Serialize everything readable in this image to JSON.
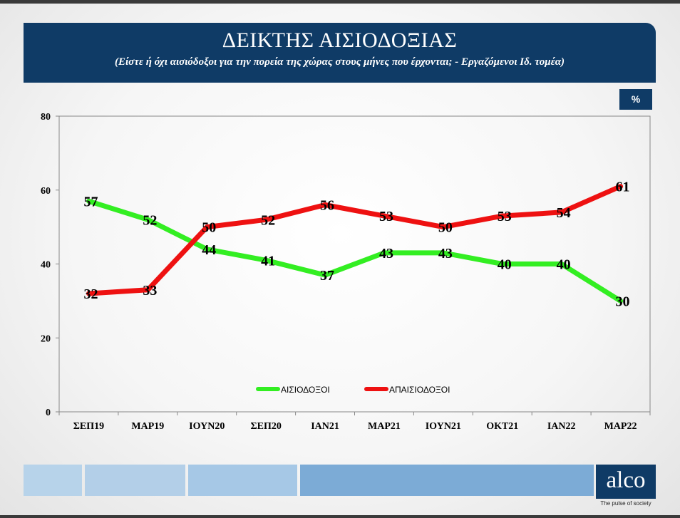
{
  "header": {
    "title": "ΔΕΙΚΤΗΣ ΑΙΣΙΟΔΟΞΙΑΣ",
    "subtitle": "(Είστε ή όχι αισιόδοξοι για την πορεία της χώρας στους  μήνες που έρχονται; - Εργαζόμενοι Ιδ. τομέα)",
    "unit": "%"
  },
  "chart_data": {
    "type": "line",
    "categories": [
      "ΣΕΠ19",
      "ΜΑΡ19",
      "ΙΟΥΝ20",
      "ΣΕΠ20",
      "ΙΑΝ21",
      "ΜΑΡ21",
      "ΙΟΥΝ21",
      "ΟΚΤ21",
      "ΙΑΝ22",
      "ΜΑΡ22"
    ],
    "series": [
      {
        "name": "ΑΙΣΙΟΔΟΞΟΙ",
        "color": "#33ee22",
        "values": [
          57,
          52,
          44,
          41,
          37,
          43,
          43,
          40,
          40,
          30
        ]
      },
      {
        "name": "ΑΠΑΙΣΙΟΔΟΞΟΙ",
        "color": "#ee1111",
        "values": [
          32,
          33,
          50,
          52,
          56,
          53,
          50,
          53,
          54,
          61
        ]
      }
    ],
    "ylim": [
      0,
      80
    ],
    "yticks": [
      0,
      20,
      40,
      60,
      80
    ],
    "grid": false,
    "legend": "bottom-center",
    "data_labels": true
  },
  "footer": {
    "logo_text": "alco",
    "tagline": "The pulse of society",
    "bar_colors": [
      "#b7d3ea",
      "#b3cfe8",
      "#a6c8e6",
      "#7cabd6"
    ]
  }
}
